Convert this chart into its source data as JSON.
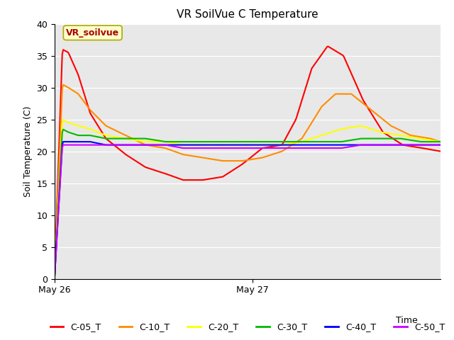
{
  "title": "VR SoilVue C Temperature",
  "xlabel": "Time",
  "ylabel": "Soil Temperature (C)",
  "ylim": [
    0,
    40
  ],
  "yticks": [
    0,
    5,
    10,
    15,
    20,
    25,
    30,
    35,
    40
  ],
  "annotation": "VR_soilvue",
  "plot_bg_color": "#e8e8e8",
  "fig_bg_color": "#ffffff",
  "series": {
    "C-05_T": {
      "color": "#ff0000",
      "points_x": [
        0.0,
        0.04,
        0.07,
        0.12,
        0.18,
        0.26,
        0.36,
        0.46,
        0.56,
        0.65,
        0.75,
        0.85,
        0.95,
        1.05,
        1.15,
        1.22,
        1.3,
        1.38,
        1.46,
        1.56,
        1.66,
        1.76,
        1.86,
        1.95
      ],
      "points_y": [
        0.0,
        36.0,
        35.5,
        32.0,
        26.0,
        22.0,
        19.5,
        17.5,
        16.5,
        15.5,
        15.5,
        16.0,
        18.0,
        20.5,
        21.0,
        25.0,
        33.0,
        36.5,
        35.0,
        28.0,
        23.0,
        21.0,
        20.5,
        20.0
      ]
    },
    "C-10_T": {
      "color": "#ff8c00",
      "points_x": [
        0.0,
        0.04,
        0.07,
        0.12,
        0.18,
        0.26,
        0.36,
        0.46,
        0.56,
        0.65,
        0.75,
        0.85,
        0.95,
        1.05,
        1.15,
        1.25,
        1.35,
        1.42,
        1.5,
        1.6,
        1.7,
        1.8,
        1.9,
        1.95
      ],
      "points_y": [
        0.0,
        30.5,
        30.0,
        29.0,
        26.5,
        24.0,
        22.5,
        21.0,
        20.5,
        19.5,
        19.0,
        18.5,
        18.5,
        19.0,
        20.0,
        22.0,
        27.0,
        29.0,
        29.0,
        26.5,
        24.0,
        22.5,
        22.0,
        21.5
      ]
    },
    "C-20_T": {
      "color": "#ffff00",
      "points_x": [
        0.0,
        0.04,
        0.07,
        0.12,
        0.18,
        0.26,
        0.36,
        0.46,
        0.56,
        0.65,
        0.75,
        0.85,
        0.95,
        1.05,
        1.15,
        1.25,
        1.35,
        1.45,
        1.55,
        1.65,
        1.75,
        1.85,
        1.95
      ],
      "points_y": [
        0.0,
        25.0,
        24.5,
        24.0,
        23.5,
        22.5,
        22.0,
        21.5,
        21.5,
        21.0,
        21.0,
        21.0,
        21.0,
        21.0,
        21.0,
        21.5,
        22.5,
        23.5,
        24.0,
        23.0,
        22.5,
        22.0,
        21.5
      ]
    },
    "C-30_T": {
      "color": "#00bb00",
      "points_x": [
        0.0,
        0.04,
        0.07,
        0.12,
        0.18,
        0.26,
        0.36,
        0.46,
        0.56,
        0.65,
        0.75,
        0.85,
        0.95,
        1.05,
        1.15,
        1.25,
        1.35,
        1.45,
        1.55,
        1.65,
        1.75,
        1.85,
        1.95
      ],
      "points_y": [
        0.0,
        23.5,
        23.0,
        22.5,
        22.5,
        22.0,
        22.0,
        22.0,
        21.5,
        21.5,
        21.5,
        21.5,
        21.5,
        21.5,
        21.5,
        21.5,
        21.5,
        21.5,
        22.0,
        22.0,
        22.0,
        21.5,
        21.5
      ]
    },
    "C-40_T": {
      "color": "#0000ff",
      "points_x": [
        0.0,
        0.04,
        0.07,
        0.12,
        0.18,
        0.26,
        0.36,
        0.46,
        0.56,
        0.65,
        0.75,
        0.85,
        0.95,
        1.05,
        1.15,
        1.25,
        1.35,
        1.45,
        1.55,
        1.65,
        1.75,
        1.85,
        1.95
      ],
      "points_y": [
        0.0,
        21.5,
        21.5,
        21.5,
        21.5,
        21.0,
        21.0,
        21.0,
        21.0,
        21.0,
        21.0,
        21.0,
        21.0,
        21.0,
        21.0,
        21.0,
        21.0,
        21.0,
        21.0,
        21.0,
        21.0,
        21.0,
        21.0
      ]
    },
    "C-50_T": {
      "color": "#cc00ff",
      "points_x": [
        0.0,
        0.04,
        0.07,
        0.12,
        0.18,
        0.26,
        0.36,
        0.46,
        0.56,
        0.65,
        0.75,
        0.85,
        0.95,
        1.05,
        1.15,
        1.25,
        1.35,
        1.45,
        1.55,
        1.65,
        1.75,
        1.85,
        1.95
      ],
      "points_y": [
        0.0,
        21.0,
        21.0,
        21.0,
        21.0,
        21.0,
        21.0,
        21.0,
        21.0,
        20.5,
        20.5,
        20.5,
        20.5,
        20.5,
        20.5,
        20.5,
        20.5,
        20.5,
        21.0,
        21.0,
        21.0,
        21.0,
        21.0
      ]
    }
  },
  "x_tick_positions": [
    0.0,
    1.0
  ],
  "x_tick_labels": [
    "May 26",
    "May 27"
  ],
  "title_fontsize": 11,
  "label_fontsize": 9,
  "tick_fontsize": 9,
  "legend_fontsize": 9,
  "annotation_fontsize": 9
}
